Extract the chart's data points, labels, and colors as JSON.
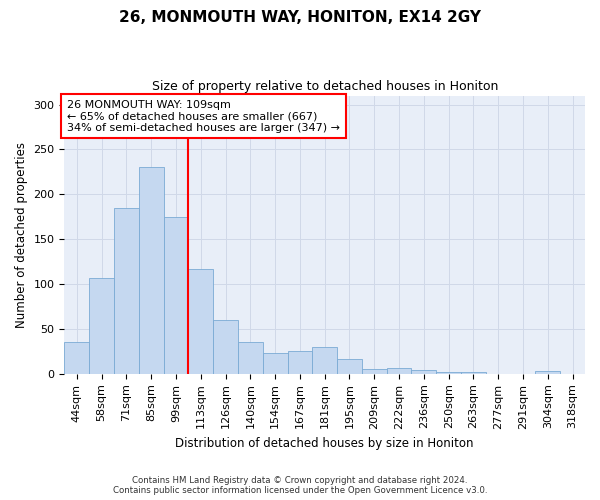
{
  "title1": "26, MONMOUTH WAY, HONITON, EX14 2GY",
  "title2": "Size of property relative to detached houses in Honiton",
  "xlabel": "Distribution of detached houses by size in Honiton",
  "ylabel": "Number of detached properties",
  "categories": [
    "44sqm",
    "58sqm",
    "71sqm",
    "85sqm",
    "99sqm",
    "113sqm",
    "126sqm",
    "140sqm",
    "154sqm",
    "167sqm",
    "181sqm",
    "195sqm",
    "209sqm",
    "222sqm",
    "236sqm",
    "250sqm",
    "263sqm",
    "277sqm",
    "291sqm",
    "304sqm",
    "318sqm"
  ],
  "values": [
    35,
    107,
    185,
    230,
    175,
    117,
    60,
    36,
    23,
    25,
    30,
    17,
    5,
    7,
    4,
    2,
    2,
    0,
    0,
    3,
    0
  ],
  "bar_color": "#c5d8f0",
  "bar_edge_color": "#7aaad4",
  "vline_color": "red",
  "annotation_text": "26 MONMOUTH WAY: 109sqm\n← 65% of detached houses are smaller (667)\n34% of semi-detached houses are larger (347) →",
  "annotation_box_color": "white",
  "annotation_box_edge": "red",
  "ylim": [
    0,
    310
  ],
  "yticks": [
    0,
    50,
    100,
    150,
    200,
    250,
    300
  ],
  "footer": "Contains HM Land Registry data © Crown copyright and database right 2024.\nContains public sector information licensed under the Open Government Licence v3.0.",
  "bg_color": "#e8eef8",
  "grid_color": "#d0d8e8"
}
